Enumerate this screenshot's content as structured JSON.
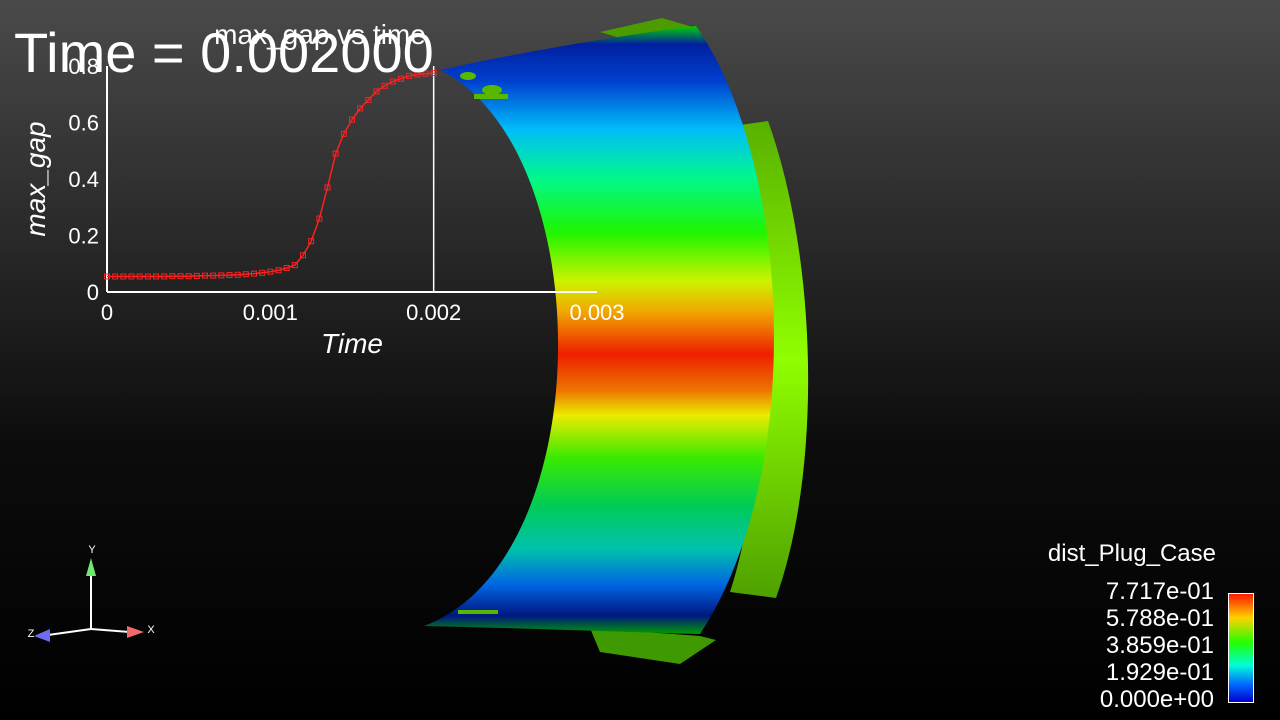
{
  "time_label": "Time = 0.002000",
  "chart_data": {
    "type": "line",
    "title": "max_gap vs time",
    "xlabel": "Time",
    "ylabel": "max_gap",
    "xlim": [
      0,
      0.003
    ],
    "ylim": [
      0,
      0.8
    ],
    "xticks": [
      "0",
      "0.001",
      "0.002",
      "0.003"
    ],
    "yticks": [
      "0",
      "0.2",
      "0.4",
      "0.6",
      "0.8"
    ],
    "current_time": 0.002,
    "series": [
      {
        "color": "#ff2020",
        "x": [
          0,
          5e-05,
          0.0001,
          0.00015,
          0.0002,
          0.00025,
          0.0003,
          0.00035,
          0.0004,
          0.00045,
          0.0005,
          0.00055,
          0.0006,
          0.00065,
          0.0007,
          0.00075,
          0.0008,
          0.00085,
          0.0009,
          0.00095,
          0.001,
          0.00105,
          0.0011,
          0.00115,
          0.0012,
          0.00125,
          0.0013,
          0.00135,
          0.0014,
          0.00145,
          0.0015,
          0.00155,
          0.0016,
          0.00165,
          0.0017,
          0.00175,
          0.0018,
          0.00185,
          0.0019,
          0.00195,
          0.002
        ],
        "y": [
          0.055,
          0.055,
          0.055,
          0.055,
          0.055,
          0.055,
          0.055,
          0.055,
          0.056,
          0.056,
          0.056,
          0.057,
          0.058,
          0.058,
          0.059,
          0.06,
          0.061,
          0.063,
          0.065,
          0.068,
          0.072,
          0.077,
          0.085,
          0.095,
          0.13,
          0.18,
          0.26,
          0.37,
          0.49,
          0.56,
          0.61,
          0.65,
          0.68,
          0.71,
          0.73,
          0.745,
          0.755,
          0.765,
          0.77,
          0.773,
          0.775
        ]
      }
    ]
  },
  "colorbar": {
    "title": "dist_Plug_Case",
    "ticks": [
      "7.717e-01",
      "5.788e-01",
      "3.859e-01",
      "1.929e-01",
      "0.000e+00"
    ]
  },
  "axes_triad": {
    "x": "X",
    "y": "Y",
    "z": "Z"
  }
}
